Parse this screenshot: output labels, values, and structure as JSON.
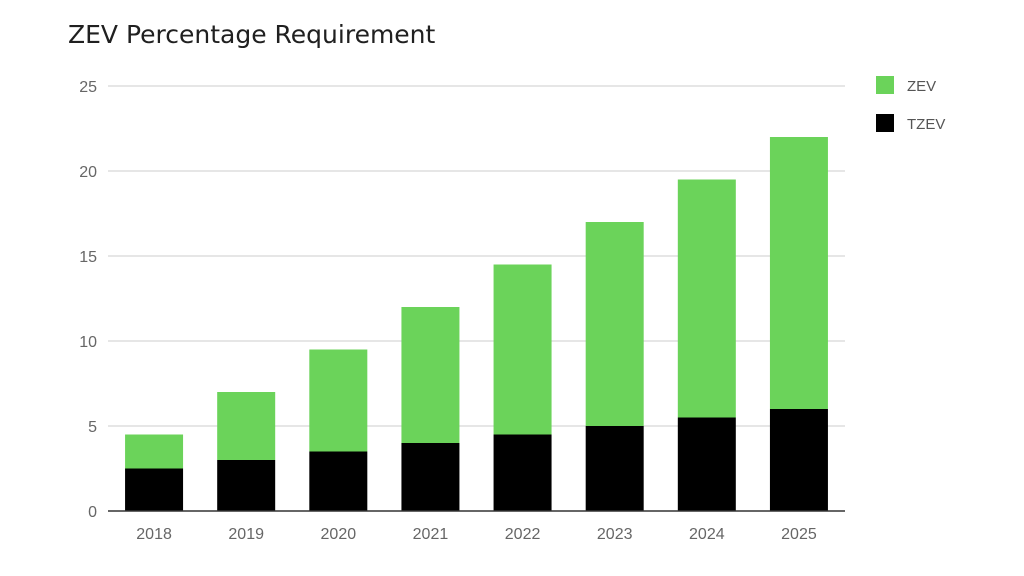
{
  "chart_data": {
    "type": "bar",
    "stacked": true,
    "title": "ZEV Percentage Requirement",
    "xlabel": "",
    "ylabel": "",
    "categories": [
      "2018",
      "2019",
      "2020",
      "2021",
      "2022",
      "2023",
      "2024",
      "2025"
    ],
    "series": [
      {
        "name": "TZEV",
        "color": "#000000",
        "values": [
          2.5,
          3,
          3.5,
          4,
          4.5,
          5,
          5.5,
          6
        ]
      },
      {
        "name": "ZEV",
        "color": "#6bd35a",
        "values": [
          2,
          4,
          6,
          8,
          10,
          12,
          14,
          16
        ]
      }
    ],
    "ylim": [
      0,
      25
    ],
    "yticks": [
      "0",
      "5",
      "10",
      "15",
      "20",
      "25"
    ],
    "grid": true,
    "legend": "right",
    "legend_order": [
      "ZEV",
      "TZEV"
    ]
  }
}
